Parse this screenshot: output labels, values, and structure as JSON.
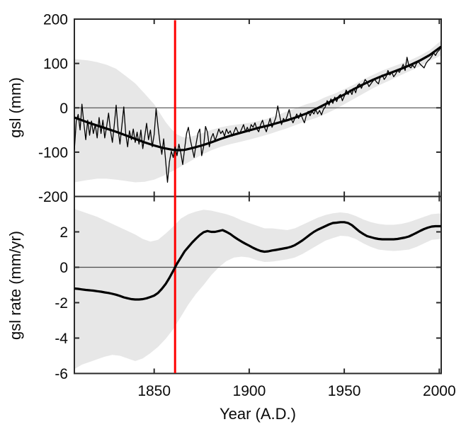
{
  "figure": {
    "type": "two-panel time series",
    "background": "#ffffff",
    "grid": false,
    "legend": "none",
    "x_axis": {
      "label": "Year (A.D.)",
      "range": [
        1808,
        2001
      ],
      "ticks": [
        1850,
        1900,
        1950,
        2000
      ]
    },
    "marker_line": {
      "year": 1861,
      "color": "#ff0000"
    },
    "colors": {
      "band": "#e7e7e7",
      "curve": "#000000",
      "axis": "#2a2a2a",
      "zero_line": "#4d4d4d"
    }
  },
  "chart_data": [
    {
      "type": "line",
      "title": "",
      "xlabel": "",
      "ylabel": "gsl (mm)",
      "ylim": [
        -200,
        200
      ],
      "yticks": [
        200,
        100,
        0,
        -100,
        -200
      ],
      "zero_line": true,
      "series": [
        {
          "name": "annual gsl",
          "x_start": 1808,
          "x_step": 1,
          "values": [
            -95,
            -30,
            -15,
            -50,
            8,
            -35,
            -72,
            -28,
            -62,
            -30,
            -58,
            -38,
            -68,
            -22,
            -58,
            -28,
            -68,
            -42,
            -12,
            -52,
            -78,
            -38,
            6,
            -48,
            -82,
            -40,
            2,
            -58,
            -88,
            -52,
            -72,
            -48,
            -78,
            -55,
            -82,
            -50,
            -92,
            -65,
            -35,
            -72,
            -50,
            -88,
            -60,
            -2,
            -42,
            -78,
            -105,
            -70,
            -118,
            -168,
            -122,
            -98,
            -112,
            -88,
            -108,
            -82,
            -102,
            -128,
            -92,
            -58,
            -44,
            -72,
            -92,
            -112,
            -82,
            -58,
            -48,
            -108,
            -88,
            -42,
            -55,
            -88,
            -68,
            -58,
            -74,
            -62,
            -48,
            -58,
            -52,
            -64,
            -48,
            -58,
            -52,
            -64,
            -54,
            -44,
            -54,
            -58,
            -48,
            -38,
            -54,
            -44,
            -54,
            -38,
            -44,
            -34,
            -48,
            -54,
            -38,
            -28,
            -44,
            -54,
            -38,
            -24,
            -44,
            -34,
            -22,
            4,
            -18,
            -38,
            -24,
            -30,
            -18,
            -4,
            -24,
            -34,
            -24,
            -14,
            -24,
            -12,
            -24,
            -34,
            -18,
            -8,
            -18,
            -8,
            -14,
            -4,
            -14,
            -6,
            -16,
            -4,
            2,
            16,
            6,
            20,
            10,
            24,
            14,
            26,
            30,
            16,
            26,
            40,
            30,
            40,
            30,
            44,
            34,
            50,
            54,
            44,
            54,
            64,
            58,
            48,
            54,
            60,
            64,
            58,
            54,
            70,
            74,
            64,
            70,
            84,
            74,
            80,
            70,
            76,
            84,
            80,
            88,
            98,
            84,
            114,
            94,
            90,
            96,
            90,
            100,
            104,
            98,
            94,
            90,
            100,
            106,
            110,
            116,
            124,
            118,
            126,
            130,
            138
          ]
        },
        {
          "name": "smoothed gsl",
          "x": [
            1808,
            1810,
            1815,
            1820,
            1825,
            1830,
            1835,
            1840,
            1845,
            1850,
            1855,
            1860,
            1863,
            1866,
            1870,
            1875,
            1880,
            1885,
            1890,
            1895,
            1900,
            1905,
            1910,
            1915,
            1920,
            1925,
            1930,
            1935,
            1940,
            1945,
            1950,
            1955,
            1960,
            1965,
            1970,
            1975,
            1980,
            1985,
            1990,
            1995,
            2001
          ],
          "values": [
            -22,
            -25,
            -33,
            -40,
            -47,
            -54,
            -62,
            -70,
            -78,
            -85,
            -91,
            -95,
            -95.5,
            -95,
            -91,
            -85,
            -78,
            -70,
            -63,
            -57,
            -51,
            -45,
            -40,
            -34,
            -28,
            -21,
            -13,
            -3,
            8,
            19,
            30,
            42,
            53,
            63,
            72,
            80,
            88,
            97,
            107,
            119,
            138
          ]
        },
        {
          "name": "uncertainty upper",
          "x": [
            1808,
            1815,
            1820,
            1825,
            1830,
            1835,
            1840,
            1845,
            1850,
            1853,
            1856,
            1859,
            1862,
            1865,
            1868,
            1872,
            1876,
            1880,
            1885,
            1890,
            1895,
            1900,
            1905,
            1910,
            1915,
            1920,
            1925,
            1930,
            1935,
            1940,
            1945,
            1950,
            1955,
            1960,
            1965,
            1970,
            1975,
            1980,
            1985,
            1990,
            1995,
            2001
          ],
          "values": [
            110,
            107,
            103,
            97,
            88,
            72,
            55,
            32,
            8,
            -12,
            -32,
            -48,
            -60,
            -66,
            -66,
            -62,
            -56,
            -50,
            -44,
            -40,
            -37,
            -34,
            -30,
            -24,
            -16,
            -8,
            0,
            8,
            14,
            24,
            32,
            42,
            52,
            64,
            74,
            84,
            92,
            100,
            108,
            118,
            130,
            152
          ]
        },
        {
          "name": "uncertainty lower",
          "x": [
            1808,
            1815,
            1820,
            1825,
            1830,
            1835,
            1840,
            1845,
            1850,
            1855,
            1860,
            1865,
            1870,
            1875,
            1880,
            1885,
            1890,
            1895,
            1900,
            1905,
            1910,
            1915,
            1920,
            1925,
            1930,
            1935,
            1940,
            1945,
            1950,
            1955,
            1960,
            1965,
            1970,
            1975,
            1980,
            1985,
            1990,
            1995,
            2001
          ],
          "values": [
            -168,
            -163,
            -160,
            -160,
            -162,
            -165,
            -168,
            -167,
            -162,
            -153,
            -142,
            -130,
            -118,
            -106,
            -96,
            -88,
            -82,
            -77,
            -72,
            -66,
            -60,
            -53,
            -46,
            -38,
            -30,
            -23,
            -14,
            -4,
            8,
            20,
            32,
            44,
            54,
            64,
            74,
            84,
            94,
            106,
            118
          ]
        }
      ]
    },
    {
      "type": "line",
      "title": "",
      "xlabel": "Year (A.D.)",
      "ylabel": "gsl rate (mm/yr)",
      "ylim": [
        -6,
        4
      ],
      "yticks": [
        2,
        0,
        -2,
        -4,
        -6
      ],
      "zero_line": true,
      "series": [
        {
          "name": "gsl rate",
          "x_start": 1808,
          "x_step": 2,
          "values": [
            -1.2,
            -1.22,
            -1.25,
            -1.28,
            -1.3,
            -1.32,
            -1.35,
            -1.38,
            -1.42,
            -1.45,
            -1.5,
            -1.55,
            -1.62,
            -1.7,
            -1.75,
            -1.8,
            -1.82,
            -1.82,
            -1.8,
            -1.75,
            -1.68,
            -1.6,
            -1.45,
            -1.22,
            -0.95,
            -0.6,
            -0.2,
            0.2,
            0.55,
            0.9,
            1.15,
            1.4,
            1.62,
            1.82,
            1.98,
            2.05,
            2.0,
            2.0,
            2.05,
            2.1,
            2.0,
            1.88,
            1.72,
            1.58,
            1.45,
            1.33,
            1.22,
            1.1,
            1.0,
            0.92,
            0.88,
            0.9,
            0.95,
            0.98,
            1.02,
            1.06,
            1.1,
            1.16,
            1.25,
            1.38,
            1.52,
            1.68,
            1.85,
            2.0,
            2.12,
            2.22,
            2.32,
            2.42,
            2.5,
            2.52,
            2.55,
            2.55,
            2.5,
            2.38,
            2.2,
            2.02,
            1.88,
            1.76,
            1.7,
            1.64,
            1.6,
            1.58,
            1.58,
            1.58,
            1.58,
            1.6,
            1.64,
            1.68,
            1.74,
            1.84,
            1.95,
            2.06,
            2.16,
            2.24,
            2.3,
            2.32,
            2.32,
            2.32
          ]
        },
        {
          "name": "uncertainty upper",
          "x": [
            1808,
            1812,
            1816,
            1820,
            1824,
            1828,
            1832,
            1836,
            1840,
            1844,
            1848,
            1852,
            1856,
            1860,
            1864,
            1868,
            1872,
            1876,
            1880,
            1884,
            1888,
            1892,
            1896,
            1900,
            1904,
            1908,
            1912,
            1916,
            1920,
            1924,
            1928,
            1932,
            1936,
            1940,
            1944,
            1948,
            1952,
            1956,
            1960,
            1964,
            1968,
            1972,
            1976,
            1980,
            1984,
            1988,
            1992,
            1996,
            2001
          ],
          "values": [
            3.3,
            3.15,
            3.0,
            2.85,
            2.65,
            2.45,
            2.25,
            2.05,
            1.85,
            1.6,
            1.45,
            1.55,
            1.9,
            2.3,
            2.75,
            3.0,
            3.15,
            3.25,
            3.2,
            3.1,
            3.0,
            2.85,
            2.65,
            2.5,
            2.35,
            2.2,
            2.2,
            2.15,
            2.1,
            2.2,
            2.4,
            2.6,
            2.8,
            2.95,
            3.05,
            3.1,
            3.05,
            2.9,
            2.7,
            2.55,
            2.45,
            2.4,
            2.4,
            2.45,
            2.55,
            2.7,
            2.85,
            3.0,
            3.05
          ]
        },
        {
          "name": "uncertainty lower",
          "x": [
            1808,
            1812,
            1816,
            1820,
            1824,
            1828,
            1832,
            1836,
            1840,
            1844,
            1848,
            1852,
            1856,
            1860,
            1864,
            1868,
            1872,
            1876,
            1880,
            1884,
            1888,
            1892,
            1896,
            1900,
            1904,
            1908,
            1912,
            1916,
            1920,
            1924,
            1928,
            1932,
            1936,
            1940,
            1944,
            1948,
            1952,
            1956,
            1960,
            1964,
            1968,
            1972,
            1976,
            1980,
            1984,
            1988,
            1992,
            1996,
            2001
          ],
          "values": [
            -5.75,
            -5.5,
            -5.35,
            -5.2,
            -5.05,
            -4.95,
            -5.0,
            -5.15,
            -5.3,
            -5.15,
            -4.85,
            -4.5,
            -4.05,
            -3.5,
            -2.8,
            -2.1,
            -1.5,
            -1.0,
            -0.45,
            0.0,
            0.35,
            0.55,
            0.6,
            0.55,
            0.4,
            0.3,
            0.32,
            0.38,
            0.45,
            0.55,
            0.75,
            1.0,
            1.25,
            1.5,
            1.65,
            1.78,
            1.75,
            1.6,
            1.35,
            1.15,
            1.0,
            0.95,
            0.92,
            0.95,
            1.0,
            1.15,
            1.35,
            1.55,
            1.6
          ]
        }
      ]
    }
  ]
}
